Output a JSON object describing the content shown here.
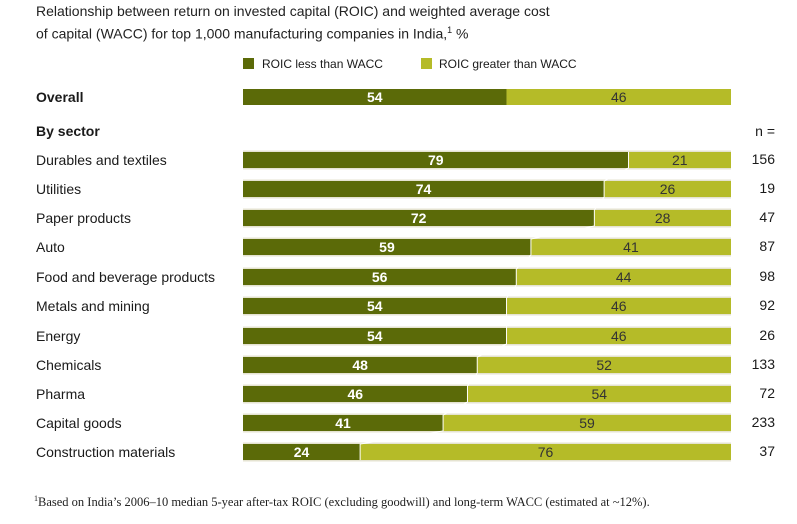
{
  "title_line1": "Relationship between return on invested capital (ROIC) and weighted average cost",
  "title_line2": "of capital (WACC) for top 1,000 manufacturing companies in India,",
  "title_sup": "1",
  "title_suffix": " %",
  "footnote_sup": "1",
  "footnote_text": "Based on India’s 2006–10 median 5-year after-tax ROIC (excluding goodwill) and long-term WACC (estimated at ~12%).",
  "colors": {
    "dark": "#5b6a08",
    "light": "#b5bb28",
    "band": "#e5e3d1",
    "connector": "#ffffff"
  },
  "chart_data": {
    "type": "bar",
    "stacked": true,
    "orientation": "horizontal",
    "legend": [
      "ROIC less than WACC",
      "ROIC greater than WACC"
    ],
    "legend_position": "top",
    "overall": {
      "label": "Overall",
      "values": [
        54,
        46
      ]
    },
    "section_header": "By sector",
    "n_header": "n =",
    "categories": [
      "Durables and textiles",
      "Utilities",
      "Paper products",
      "Auto",
      "Food and beverage products",
      "Metals and mining",
      "Energy",
      "Chemicals",
      "Pharma",
      "Capital goods",
      "Construction materials"
    ],
    "series": [
      {
        "name": "ROIC less than WACC",
        "values": [
          79,
          74,
          72,
          59,
          56,
          54,
          54,
          48,
          46,
          41,
          24
        ]
      },
      {
        "name": "ROIC greater than WACC",
        "values": [
          21,
          26,
          28,
          41,
          44,
          46,
          46,
          52,
          54,
          59,
          76
        ]
      }
    ],
    "n": [
      156,
      19,
      47,
      87,
      98,
      92,
      26,
      133,
      72,
      233,
      37
    ],
    "xlim": [
      0,
      100
    ]
  }
}
